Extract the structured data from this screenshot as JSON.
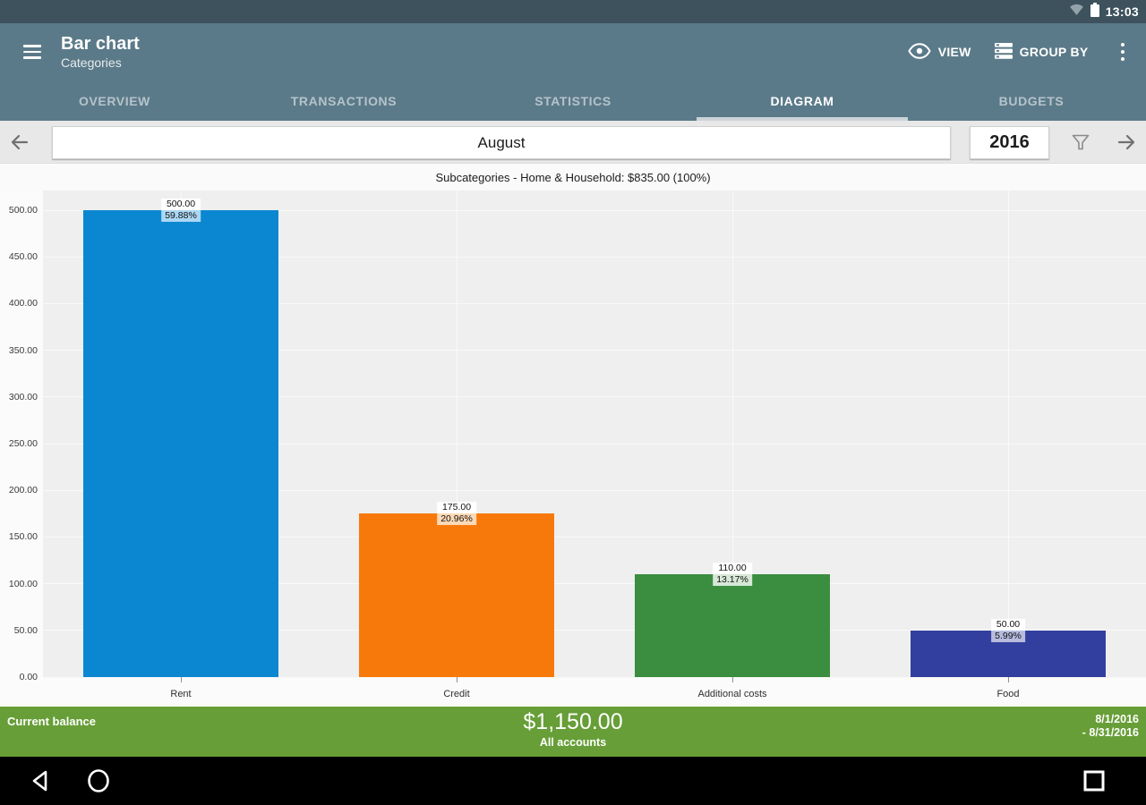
{
  "status_bar": {
    "time": "13:03",
    "icons": [
      "wifi-icon",
      "battery-icon"
    ]
  },
  "app_bar": {
    "title": "Bar chart",
    "subtitle": "Categories",
    "view_label": "VIEW",
    "group_by_label": "GROUP BY"
  },
  "tabs": [
    {
      "label": "OVERVIEW",
      "active": false
    },
    {
      "label": "TRANSACTIONS",
      "active": false
    },
    {
      "label": "STATISTICS",
      "active": false
    },
    {
      "label": "DIAGRAM",
      "active": true
    },
    {
      "label": "BUDGETS",
      "active": false
    }
  ],
  "period_nav": {
    "month": "August",
    "year": "2016"
  },
  "chart_header": "Subcategories - Home & Household: $835.00 (100%)",
  "chart_data": {
    "type": "bar",
    "title": "Subcategories - Home & Household: $835.00 (100%)",
    "categories": [
      "Rent",
      "Credit",
      "Additional costs",
      "Food"
    ],
    "values": [
      500,
      175,
      110,
      50
    ],
    "value_labels": [
      "500.00",
      "175.00",
      "110.00",
      "50.00"
    ],
    "percent_labels": [
      "59.88%",
      "20.96%",
      "13.17%",
      "5.99%"
    ],
    "bar_colors": [
      "#0b87d1",
      "#f8790b",
      "#3b8e3f",
      "#333f9e"
    ],
    "label_tints": [
      "#abd7f3",
      "#fcd9b6",
      "#d7e8d7",
      "#b7bcdf"
    ],
    "xlabel": "",
    "ylabel": "",
    "ylim": [
      0,
      500
    ],
    "ytick_step": 50,
    "ytick_labels": [
      "0.00",
      "50.00",
      "100.00",
      "150.00",
      "200.00",
      "250.00",
      "300.00",
      "350.00",
      "400.00",
      "450.00",
      "500.00"
    ],
    "grid": true,
    "legend": false
  },
  "footer": {
    "label": "Current balance",
    "amount": "$1,150.00",
    "scope": "All accounts",
    "date_from": "8/1/2016",
    "date_to": "- 8/31/2016"
  },
  "colors": {
    "status_bar": "#3d525d",
    "app_bar": "#5b7a89",
    "tab_underline": "#ccd4d9",
    "footer_green": "#679e37",
    "plot_bg": "#efefef",
    "period_row_bg": "#e8e8e8"
  }
}
